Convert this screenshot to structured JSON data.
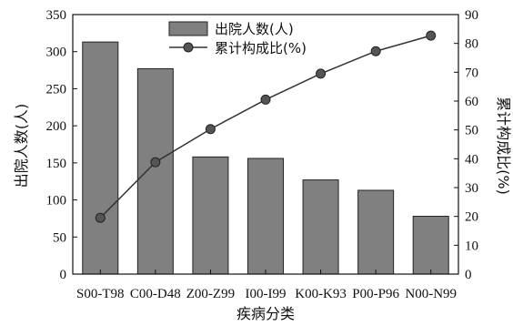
{
  "chart_data": {
    "type": "bar",
    "categories": [
      "S00-T98",
      "C00-D48",
      "Z00-Z99",
      "I00-I99",
      "K00-K93",
      "P00-P96",
      "N00-N99"
    ],
    "series": [
      {
        "name": "出院人数(人)",
        "type": "bar",
        "axis": "left",
        "color": "#808080",
        "values": [
          313,
          277,
          158,
          156,
          127,
          113,
          78
        ]
      },
      {
        "name": "累计构成比(%)",
        "type": "line",
        "axis": "right",
        "color": "#333333",
        "values": [
          19.5,
          38.8,
          50.3,
          60.5,
          69.5,
          77.3,
          82.7
        ]
      }
    ],
    "xlabel": "疾病分类",
    "ylabel": "出院人数(人)",
    "y2label": "累计构成比(%)",
    "ylim": [
      0,
      350
    ],
    "yticks": [
      0,
      50,
      100,
      150,
      200,
      250,
      300,
      350
    ],
    "y2lim": [
      0,
      90
    ],
    "y2ticks": [
      0,
      10,
      20,
      30,
      40,
      50,
      60,
      70,
      80,
      90
    ],
    "grid": false,
    "legend": "top-center"
  }
}
